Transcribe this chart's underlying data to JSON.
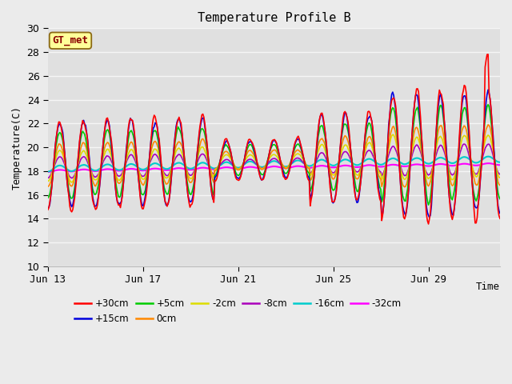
{
  "title": "Temperature Profile B",
  "ylabel": "Temperature(C)",
  "annotation": "GT_met",
  "ylim": [
    10,
    30
  ],
  "background_color": "#ebebeb",
  "plot_bg_color": "#e0e0e0",
  "grid_color": "#f5f5f5",
  "series_colors": {
    "+30cm": "#ff0000",
    "+15cm": "#0000dd",
    "+5cm": "#00cc00",
    "0cm": "#ff8800",
    "-2cm": "#dddd00",
    "-8cm": "#aa00bb",
    "-16cm": "#00cccc",
    "-32cm": "#ff00ff"
  },
  "tick_positions": [
    0,
    4,
    8,
    12,
    16
  ],
  "tick_labels": [
    "Jun 13",
    "Jun 17",
    "Jun 21",
    "Jun 25",
    "Jun 29"
  ]
}
